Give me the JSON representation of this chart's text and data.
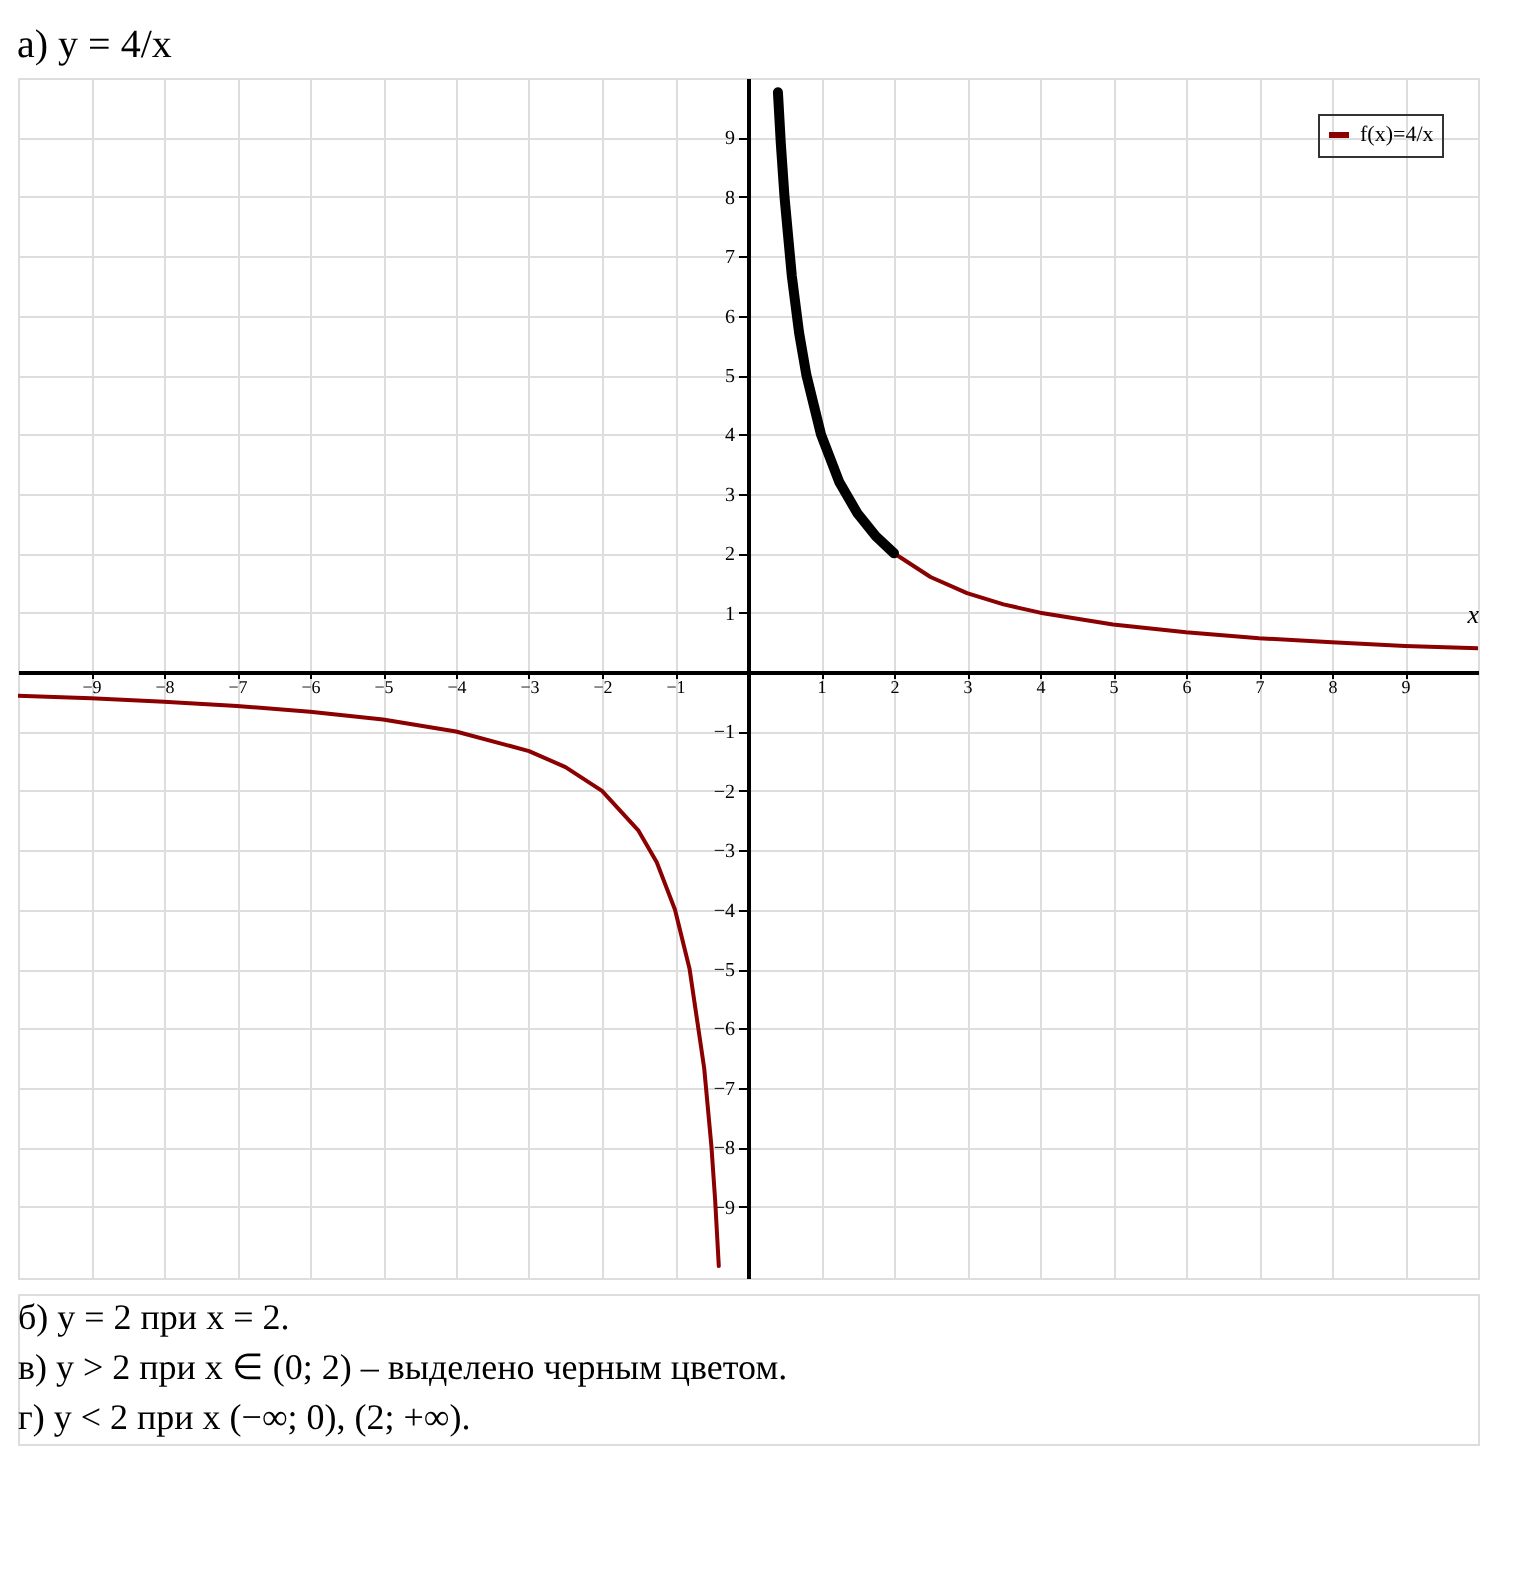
{
  "chart_data": {
    "type": "line",
    "title": "а) y = 4/x",
    "xlabel": "x",
    "series": [
      {
        "name": "f(x)=4/x",
        "color": "#8b0000",
        "x": [
          -10,
          -9,
          -8,
          -7,
          -6,
          -5,
          -4,
          -3,
          -2.5,
          -2,
          -1.5,
          -1.25,
          -1,
          -0.8,
          -0.6,
          -0.5,
          -0.45,
          -0.4,
          0,
          2,
          2.5,
          3,
          3.5,
          4,
          5,
          6,
          7,
          8,
          9,
          10
        ],
        "values": [
          -0.4,
          -0.44,
          -0.5,
          -0.57,
          -0.67,
          -0.8,
          -1,
          -1.33,
          -1.6,
          -2,
          -2.67,
          -3.2,
          -4,
          -5,
          -6.67,
          -8,
          -8.89,
          -10,
          null,
          2,
          1.6,
          1.33,
          1.14,
          1,
          0.8,
          0.67,
          0.57,
          0.5,
          0.44,
          0.4
        ]
      },
      {
        "color": "#000000",
        "x": [
          0.41,
          0.45,
          0.5,
          0.6,
          0.7,
          0.8,
          1,
          1.25,
          1.5,
          1.75,
          2
        ],
        "values": [
          9.76,
          8.89,
          8,
          6.67,
          5.71,
          5,
          4,
          3.2,
          2.67,
          2.29,
          2
        ]
      }
    ],
    "xlim": [
      -10,
      10
    ],
    "ylim": [
      -10.2,
      10
    ],
    "xticks": [
      -9,
      -8,
      -7,
      -6,
      -5,
      -4,
      -3,
      -2,
      -1,
      1,
      2,
      3,
      4,
      5,
      6,
      7,
      8,
      9
    ],
    "yticks": [
      -9,
      -8,
      -7,
      -6,
      -5,
      -4,
      -3,
      -2,
      -1,
      1,
      2,
      3,
      4,
      5,
      6,
      7,
      8,
      9
    ],
    "grid": true,
    "legend": "top right",
    "marker": "none",
    "line_style": "solid",
    "annotations": [
      "б) y = 2 при x = 2.",
      "в) y > 2 при x ∈ (0; 2) – выделено черным цветом.",
      "г) y < 2 при x (−∞; 0), (2; +∞)."
    ]
  }
}
